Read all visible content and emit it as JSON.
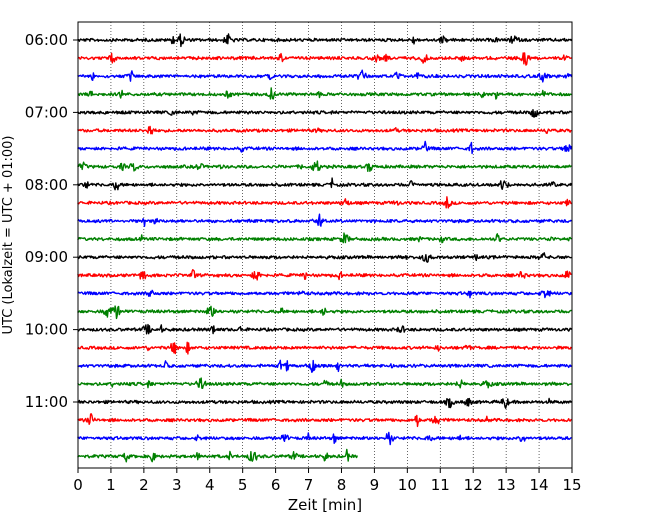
{
  "chart_data": {
    "type": "line",
    "title": "",
    "xlabel": "Zeit  [min]",
    "ylabel": "UTC (Lokalzeit = UTC + 01:00)",
    "xlim": [
      0,
      15
    ],
    "x_ticks": [
      0,
      1,
      2,
      3,
      4,
      5,
      6,
      7,
      8,
      9,
      10,
      11,
      12,
      13,
      14,
      15
    ],
    "x_tick_labels": [
      "0",
      "1",
      "2",
      "3",
      "4",
      "5",
      "6",
      "7",
      "8",
      "9",
      "10",
      "11",
      "12",
      "13",
      "14",
      "15"
    ],
    "y_ticks": [
      "06:00",
      "07:00",
      "08:00",
      "09:00",
      "10:00",
      "11:00"
    ],
    "grid": "vertical dotted at each minute",
    "colors_cycle": [
      "#000000",
      "#ff0000",
      "#0000ff",
      "#008000"
    ],
    "series": [
      {
        "start": "06:00",
        "color": "#000000",
        "end_min": 15
      },
      {
        "start": "06:15",
        "color": "#ff0000",
        "end_min": 15
      },
      {
        "start": "06:30",
        "color": "#0000ff",
        "end_min": 15
      },
      {
        "start": "06:45",
        "color": "#008000",
        "end_min": 15
      },
      {
        "start": "07:00",
        "color": "#000000",
        "end_min": 15
      },
      {
        "start": "07:15",
        "color": "#ff0000",
        "end_min": 15
      },
      {
        "start": "07:30",
        "color": "#0000ff",
        "end_min": 15
      },
      {
        "start": "07:45",
        "color": "#008000",
        "end_min": 15
      },
      {
        "start": "08:00",
        "color": "#000000",
        "end_min": 15
      },
      {
        "start": "08:15",
        "color": "#ff0000",
        "end_min": 15
      },
      {
        "start": "08:30",
        "color": "#0000ff",
        "end_min": 15
      },
      {
        "start": "08:45",
        "color": "#008000",
        "end_min": 15
      },
      {
        "start": "09:00",
        "color": "#000000",
        "end_min": 15
      },
      {
        "start": "09:15",
        "color": "#ff0000",
        "end_min": 15
      },
      {
        "start": "09:30",
        "color": "#0000ff",
        "end_min": 15
      },
      {
        "start": "09:45",
        "color": "#008000",
        "end_min": 15
      },
      {
        "start": "10:00",
        "color": "#000000",
        "end_min": 15
      },
      {
        "start": "10:15",
        "color": "#ff0000",
        "end_min": 15
      },
      {
        "start": "10:30",
        "color": "#0000ff",
        "end_min": 15
      },
      {
        "start": "10:45",
        "color": "#008000",
        "end_min": 15
      },
      {
        "start": "11:00",
        "color": "#000000",
        "end_min": 15
      },
      {
        "start": "11:15",
        "color": "#ff0000",
        "end_min": 15
      },
      {
        "start": "11:30",
        "color": "#0000ff",
        "end_min": 15
      },
      {
        "start": "11:45",
        "color": "#008000",
        "end_min": 8.5
      }
    ]
  }
}
